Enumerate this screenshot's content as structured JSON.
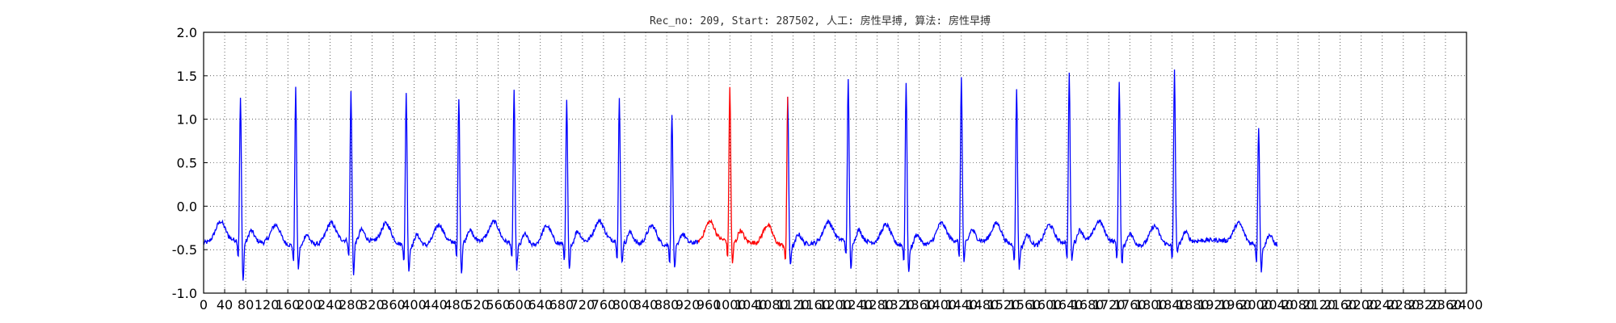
{
  "chart_data": {
    "type": "line",
    "title": "Rec_no: 209, Start: 287502, 人工: 房性早搏, 算法: 房性早搏",
    "xlabel": "",
    "ylabel": "",
    "xlim": [
      0,
      2400
    ],
    "ylim": [
      -1.0,
      2.0
    ],
    "grid": true,
    "x_tick_values": [
      0,
      40,
      80,
      120,
      160,
      200,
      240,
      280,
      320,
      360,
      400,
      440,
      480,
      520,
      560,
      600,
      640,
      680,
      720,
      760,
      800,
      840,
      880,
      920,
      960,
      1000,
      1040,
      1080,
      1120,
      1160,
      1200,
      1240,
      1280,
      1320,
      1360,
      1400,
      1440,
      1480,
      1520,
      1560,
      1600,
      1640,
      1680,
      1720,
      1760,
      1800,
      1840,
      1880,
      1920,
      1960,
      2000,
      2040,
      2080,
      2120,
      2160,
      2200,
      2240,
      2280,
      2320,
      2360,
      2400
    ],
    "x_tick_labels": [
      "0",
      "40",
      "80",
      "120",
      "160",
      "200",
      "240",
      "280",
      "320",
      "360",
      "400",
      "440",
      "480",
      "520",
      "560",
      "600",
      "640",
      "680",
      "720",
      "760",
      "800",
      "840",
      "880",
      "920",
      "960",
      "1000",
      "1040",
      "1080",
      "1120",
      "1160",
      "1200",
      "1240",
      "1280",
      "1320",
      "1360",
      "1400",
      "1440",
      "1480",
      "1520",
      "1560",
      "1600",
      "1640",
      "1680",
      "1720",
      "1760",
      "1800",
      "1840",
      "1880",
      "1920",
      "1960",
      "2000",
      "2040",
      "2080",
      "2120",
      "2160",
      "2200",
      "2240",
      "2280",
      "2320",
      "2360",
      "2400"
    ],
    "y_tick_values": [
      -1.0,
      -0.5,
      0.0,
      0.5,
      1.0,
      1.5,
      2.0
    ],
    "y_tick_labels": [
      "-1.0",
      "-0.5",
      "0.0",
      "0.5",
      "1.0",
      "1.5",
      "2.0"
    ],
    "signal": {
      "baseline": -0.42,
      "beats": [
        {
          "x": 70,
          "peak": 1.22,
          "trough": -1.0
        },
        {
          "x": 175,
          "peak": 1.38,
          "trough": -0.8
        },
        {
          "x": 280,
          "peak": 1.28,
          "trough": -0.92
        },
        {
          "x": 385,
          "peak": 1.33,
          "trough": -0.83
        },
        {
          "x": 485,
          "peak": 1.24,
          "trough": -0.9
        },
        {
          "x": 590,
          "peak": 1.35,
          "trough": -0.82
        },
        {
          "x": 690,
          "peak": 1.21,
          "trough": -0.85
        },
        {
          "x": 790,
          "peak": 1.21,
          "trough": -0.78
        },
        {
          "x": 890,
          "peak": 1.09,
          "trough": -0.8
        },
        {
          "x": 1000,
          "peak": 1.35,
          "trough": -0.8
        },
        {
          "x": 1110,
          "peak": 1.29,
          "trough": -0.75
        },
        {
          "x": 1225,
          "peak": 1.45,
          "trough": -0.88
        },
        {
          "x": 1335,
          "peak": 1.46,
          "trough": -0.85
        },
        {
          "x": 1440,
          "peak": 1.46,
          "trough": -0.78
        },
        {
          "x": 1545,
          "peak": 1.39,
          "trough": -0.8
        },
        {
          "x": 1645,
          "peak": 1.5,
          "trough": -0.76
        },
        {
          "x": 1740,
          "peak": 1.44,
          "trough": -0.78
        },
        {
          "x": 1845,
          "peak": 1.58,
          "trough": -0.62
        },
        {
          "x": 2005,
          "peak": 0.94,
          "trough": -0.83
        }
      ],
      "end_x": 2040
    },
    "series": [
      {
        "color": "#0000ff"
      },
      {
        "color": "#ff0000",
        "x_range": [
          940,
          1110
        ]
      }
    ]
  }
}
